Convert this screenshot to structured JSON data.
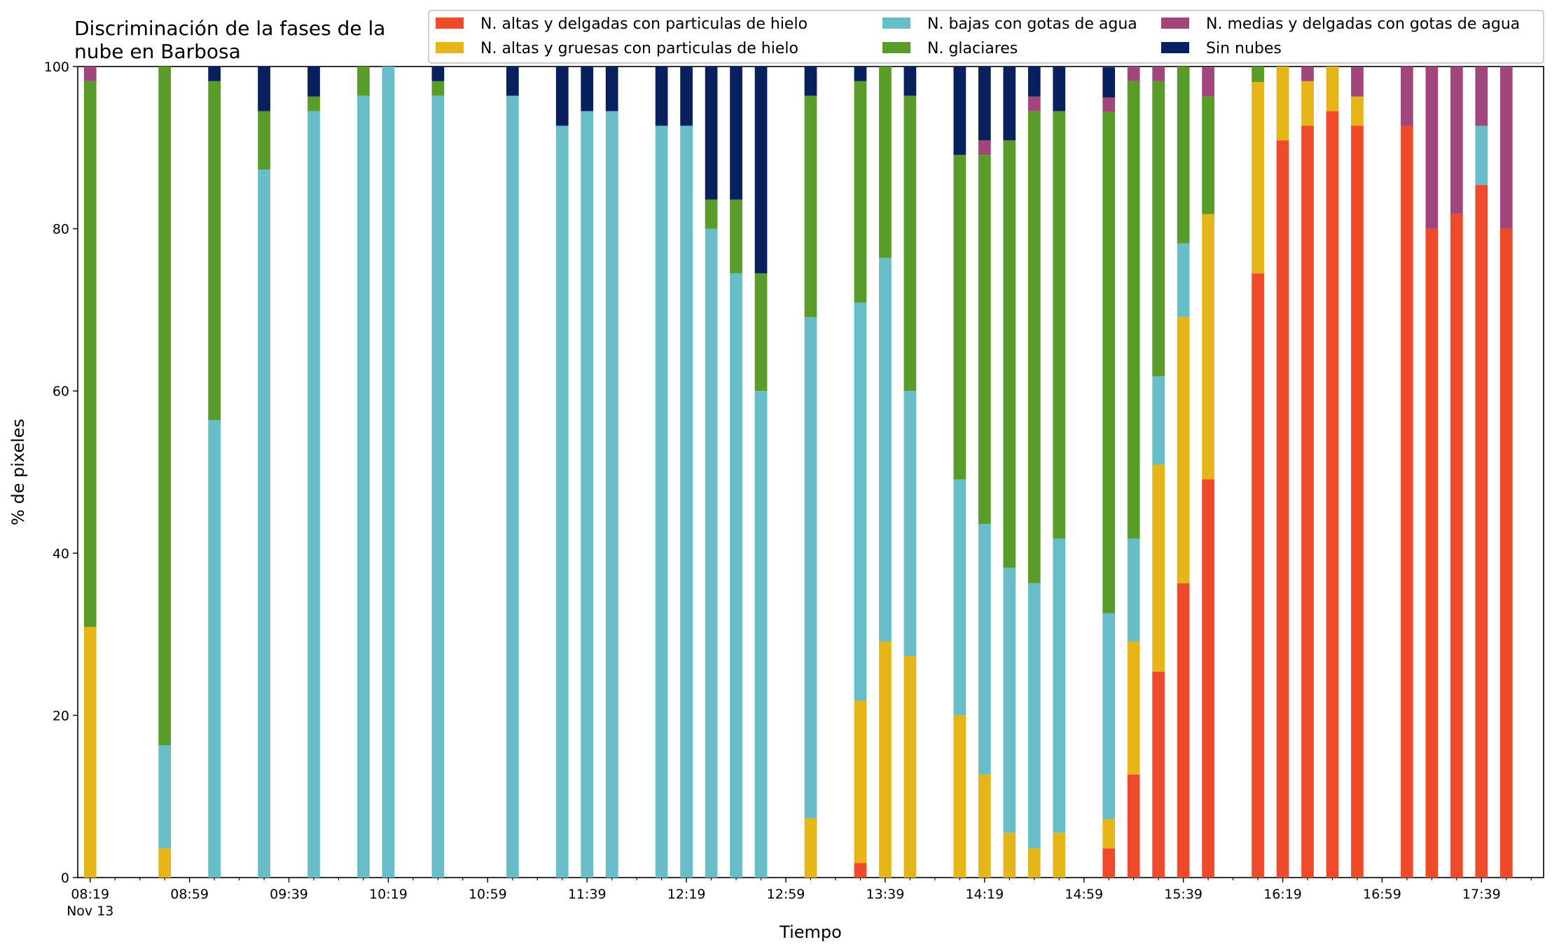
{
  "chart_data": {
    "type": "bar",
    "stacked": true,
    "title": "Discriminación de la fases de la\nnube en Barbosa",
    "xlabel": "Tiempo",
    "ylabel": "% de pixeles",
    "ylim": [
      0,
      100
    ],
    "yticks": [
      0,
      20,
      40,
      60,
      80,
      100
    ],
    "xlim": [
      -0.5,
      58.5
    ],
    "xticks": [
      {
        "index": 0,
        "label": "08:19",
        "sublabel": "Nov 13"
      },
      {
        "index": 4,
        "label": "08:59"
      },
      {
        "index": 8,
        "label": "09:39"
      },
      {
        "index": 12,
        "label": "10:19"
      },
      {
        "index": 16,
        "label": "10:59"
      },
      {
        "index": 20,
        "label": "11:39"
      },
      {
        "index": 24,
        "label": "12:19"
      },
      {
        "index": 28,
        "label": "12:59"
      },
      {
        "index": 32,
        "label": "13:39"
      },
      {
        "index": 36,
        "label": "14:19"
      },
      {
        "index": 40,
        "label": "14:59"
      },
      {
        "index": 44,
        "label": "15:39"
      },
      {
        "index": 48,
        "label": "16:19"
      },
      {
        "index": 52,
        "label": "16:59"
      },
      {
        "index": 56,
        "label": "17:39"
      }
    ],
    "grid": false,
    "legend": {
      "position": "top-right",
      "columns": 3
    },
    "x": [
      "08:19",
      "08:29",
      "08:39",
      "08:49",
      "08:59",
      "09:09",
      "09:19",
      "09:29",
      "09:39",
      "09:49",
      "09:59",
      "10:09",
      "10:19",
      "10:29",
      "10:39",
      "10:49",
      "10:59",
      "11:09",
      "11:19",
      "11:29",
      "11:39",
      "11:49",
      "11:59",
      "12:09",
      "12:19",
      "12:29",
      "12:39",
      "12:49",
      "12:59",
      "13:09",
      "13:19",
      "13:29",
      "13:39",
      "13:49",
      "13:59",
      "14:09",
      "14:19",
      "14:29",
      "14:39",
      "14:49",
      "14:59",
      "15:09",
      "15:19",
      "15:29",
      "15:39",
      "15:49",
      "15:59",
      "16:09",
      "16:19",
      "16:29",
      "16:39",
      "16:49",
      "16:59",
      "17:09",
      "17:19",
      "17:29",
      "17:39",
      "17:49"
    ],
    "series": [
      {
        "name": "N. altas y delgadas con particulas de hielo",
        "color": "#ef4b2b",
        "values": [
          0,
          null,
          null,
          0,
          null,
          0,
          null,
          0,
          null,
          0,
          null,
          0,
          0,
          null,
          0,
          null,
          null,
          0,
          null,
          0,
          0,
          0,
          null,
          0,
          0,
          0,
          0,
          0,
          null,
          0,
          null,
          1.8,
          0,
          0,
          null,
          0,
          0,
          0,
          0,
          0,
          null,
          3.6,
          12.7,
          25.4,
          36.3,
          49.1,
          null,
          74.5,
          90.9,
          92.7,
          94.5,
          92.7,
          null,
          92.7,
          80,
          81.8,
          85.4,
          80
        ]
      },
      {
        "name": "N. altas y gruesas con particulas de hielo",
        "color": "#e6b517",
        "values": [
          30.9,
          null,
          null,
          3.6,
          null,
          0,
          null,
          0,
          null,
          0,
          null,
          0,
          0,
          null,
          0,
          null,
          null,
          0,
          null,
          0,
          0,
          0,
          null,
          0,
          0,
          0,
          0,
          0,
          null,
          7.3,
          null,
          20,
          29.1,
          27.3,
          null,
          20,
          12.7,
          5.5,
          3.6,
          5.5,
          null,
          3.6,
          16.4,
          25.5,
          32.8,
          32.7,
          null,
          23.6,
          9.1,
          5.5,
          5.5,
          3.6,
          null,
          0,
          0,
          0,
          0,
          0
        ]
      },
      {
        "name": "N. bajas con gotas de agua",
        "color": "#67bec9",
        "values": [
          0,
          null,
          null,
          12.7,
          null,
          56.4,
          null,
          87.3,
          null,
          94.5,
          null,
          96.4,
          100,
          null,
          96.4,
          null,
          null,
          96.4,
          null,
          92.7,
          94.5,
          94.5,
          null,
          92.7,
          92.7,
          80,
          74.5,
          60,
          null,
          61.8,
          null,
          49.1,
          47.3,
          32.7,
          null,
          29.1,
          30.9,
          32.7,
          32.7,
          36.3,
          null,
          25.4,
          12.7,
          10.9,
          9.1,
          0,
          null,
          0,
          0,
          0,
          0,
          0,
          null,
          0,
          0,
          0,
          7.3,
          0
        ]
      },
      {
        "name": "N. glaciares",
        "color": "#5a9c2a",
        "values": [
          67.3,
          null,
          null,
          83.7,
          null,
          41.8,
          null,
          7.2,
          null,
          1.8,
          null,
          3.6,
          0,
          null,
          1.8,
          null,
          null,
          0,
          null,
          0,
          0,
          0,
          null,
          0,
          0,
          3.6,
          9.1,
          14.5,
          null,
          27.3,
          null,
          27.3,
          23.6,
          36.4,
          null,
          40,
          45.5,
          52.7,
          58.2,
          52.7,
          null,
          61.8,
          56.4,
          36.4,
          21.8,
          14.5,
          null,
          1.9,
          0,
          0,
          0,
          0,
          null,
          0,
          0,
          0,
          0,
          0
        ]
      },
      {
        "name": "N. medias y delgadas con gotas de agua",
        "color": "#a1467b",
        "values": [
          1.8,
          null,
          null,
          0,
          null,
          0,
          null,
          0,
          null,
          0,
          null,
          0,
          0,
          null,
          0,
          null,
          null,
          0,
          null,
          0,
          0,
          0,
          null,
          0,
          0,
          0,
          0,
          0,
          null,
          0,
          null,
          0,
          0,
          0,
          null,
          0,
          1.8,
          0,
          1.8,
          0,
          null,
          1.8,
          1.8,
          1.8,
          0,
          3.6,
          null,
          0,
          0,
          1.8,
          0,
          3.6,
          null,
          7.3,
          20,
          18.2,
          7.3,
          20
        ]
      },
      {
        "name": "Sin nubes",
        "color": "#08215e",
        "values": [
          0,
          null,
          null,
          0,
          null,
          1.8,
          null,
          5.5,
          null,
          3.7,
          null,
          0,
          0,
          null,
          1.8,
          null,
          null,
          3.6,
          null,
          7.3,
          5.5,
          5.5,
          null,
          7.3,
          7.3,
          16.4,
          16.4,
          25.5,
          null,
          3.6,
          null,
          1.8,
          0,
          3.6,
          null,
          10.9,
          9.1,
          9.1,
          3.7,
          5.5,
          null,
          3.7,
          0,
          0,
          0,
          0,
          null,
          0,
          0,
          0,
          0,
          0,
          null,
          0,
          0,
          0,
          0,
          0
        ]
      }
    ]
  }
}
